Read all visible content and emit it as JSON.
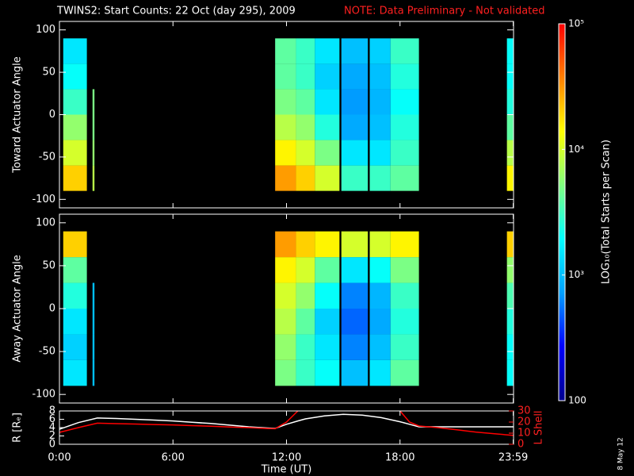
{
  "title": "TWINS2: Start Counts: 22 Oct (day 295), 2009",
  "note": "NOTE: Data Preliminary - Not validated",
  "stamp": "8 May 12",
  "colorbar": {
    "label": "LOG₁₀(Total Starts per Scan)",
    "log": true,
    "zlim": [
      100,
      100000
    ],
    "ticks": [
      {
        "value": 100000,
        "label": "10⁵"
      },
      {
        "value": 10000,
        "label": "10⁴"
      },
      {
        "value": 1000,
        "label": "10³"
      },
      100
    ],
    "colormap": [
      "#000090",
      "#0000ff",
      "#00a0ff",
      "#00ffff",
      "#80ff80",
      "#ffff00",
      "#ff8000",
      "#ff0000"
    ]
  },
  "chart_data": [
    {
      "type": "heatmap",
      "ylabel": "Toward Actuator Angle",
      "ylim": [
        -110,
        110
      ],
      "yticks": [
        -100,
        -50,
        0,
        50,
        100
      ],
      "ybins": [
        -90,
        -60,
        -30,
        0,
        30,
        60,
        90
      ],
      "columns": [
        [
          0.2,
          1.45
        ],
        [
          1.75,
          1.85
        ],
        [
          11.4,
          12.5
        ],
        [
          12.5,
          13.5
        ],
        [
          13.5,
          14.8
        ],
        [
          14.9,
          16.3
        ],
        [
          16.4,
          17.5
        ],
        [
          17.5,
          19.0
        ],
        [
          23.65,
          24
        ]
      ],
      "values": [
        [
          20000,
          10000,
          6000,
          3000,
          2000,
          1500
        ],
        [
          8000,
          6000,
          5000,
          5000,
          null,
          null
        ],
        [
          30000,
          15000,
          8000,
          5000,
          4000,
          4000
        ],
        [
          20000,
          10000,
          6000,
          4000,
          3000,
          3000
        ],
        [
          10000,
          5000,
          2500,
          1500,
          1200,
          1500
        ],
        [
          3000,
          1500,
          800,
          700,
          800,
          1000
        ],
        [
          3000,
          1500,
          1000,
          900,
          1000,
          1200
        ],
        [
          4000,
          3000,
          2500,
          2000,
          2500,
          3000
        ],
        [
          15000,
          8000,
          4000,
          2500,
          2000,
          2000
        ]
      ]
    },
    {
      "type": "heatmap",
      "ylabel": "Away Actuator Angle",
      "ylim": [
        -110,
        110
      ],
      "yticks": [
        -100,
        -50,
        0,
        50,
        100
      ],
      "ybins": [
        -90,
        -60,
        -30,
        0,
        30,
        60,
        90
      ],
      "columns": [
        [
          0.2,
          1.45
        ],
        [
          1.75,
          1.85
        ],
        [
          11.4,
          12.5
        ],
        [
          12.5,
          13.5
        ],
        [
          13.5,
          14.8
        ],
        [
          14.9,
          16.3
        ],
        [
          16.4,
          17.5
        ],
        [
          17.5,
          19.0
        ],
        [
          23.65,
          24
        ]
      ],
      "values": [
        [
          1500,
          1200,
          1500,
          2500,
          4000,
          20000
        ],
        [
          1000,
          1000,
          1000,
          1000,
          null,
          null
        ],
        [
          5000,
          6000,
          8000,
          10000,
          15000,
          30000
        ],
        [
          3000,
          3000,
          4000,
          6000,
          10000,
          20000
        ],
        [
          2000,
          1500,
          1200,
          2000,
          4000,
          15000
        ],
        [
          1000,
          600,
          500,
          600,
          1500,
          10000
        ],
        [
          1500,
          1000,
          800,
          900,
          2000,
          10000
        ],
        [
          4000,
          3000,
          2500,
          3000,
          5000,
          15000
        ],
        [
          2000,
          2000,
          2500,
          3500,
          6000,
          20000
        ]
      ]
    },
    {
      "type": "line",
      "xlabel": "Time (UT)",
      "ylabel": "R [Rₑ]",
      "y2label": "L Shell",
      "xlim": [
        0,
        24
      ],
      "xticks": [
        {
          "value": 0,
          "label": "0:00"
        },
        {
          "value": 6,
          "label": "6:00"
        },
        {
          "value": 12,
          "label": "12:00"
        },
        {
          "value": 18,
          "label": "18:00"
        },
        {
          "value": 23.983,
          "label": "23:59"
        }
      ],
      "ylim": [
        0,
        8
      ],
      "yticks": [
        0,
        2,
        4,
        6,
        8
      ],
      "y2lim": [
        0,
        30
      ],
      "y2ticks": [
        0,
        10,
        20,
        30
      ],
      "x": [
        0,
        1,
        2,
        3,
        4,
        5,
        6,
        7,
        8,
        9,
        10,
        11,
        11.4,
        12,
        12.6,
        13,
        14,
        15,
        16,
        17,
        18,
        18.5,
        19,
        20,
        21,
        22,
        23,
        24
      ],
      "series": [
        {
          "color": "#ffffff",
          "values": [
            3.6,
            5.2,
            6.3,
            6.2,
            6.0,
            5.8,
            5.6,
            5.3,
            5.0,
            4.6,
            4.2,
            3.9,
            3.8,
            4.8,
            5.6,
            6.1,
            6.8,
            7.2,
            7.0,
            6.4,
            5.4,
            4.8,
            4.2,
            4.2,
            4.2,
            4.2,
            4.2,
            4.2
          ]
        },
        {
          "color": "#ff0000",
          "axis": "y2",
          "values": [
            10.7,
            15,
            19,
            18.6,
            18.2,
            17.8,
            17.4,
            16.8,
            16.2,
            15.6,
            15,
            14.2,
            14,
            20,
            30,
            null,
            null,
            null,
            null,
            null,
            30,
            20,
            16.4,
            15,
            13,
            11,
            9.5,
            7.9
          ]
        }
      ]
    }
  ]
}
